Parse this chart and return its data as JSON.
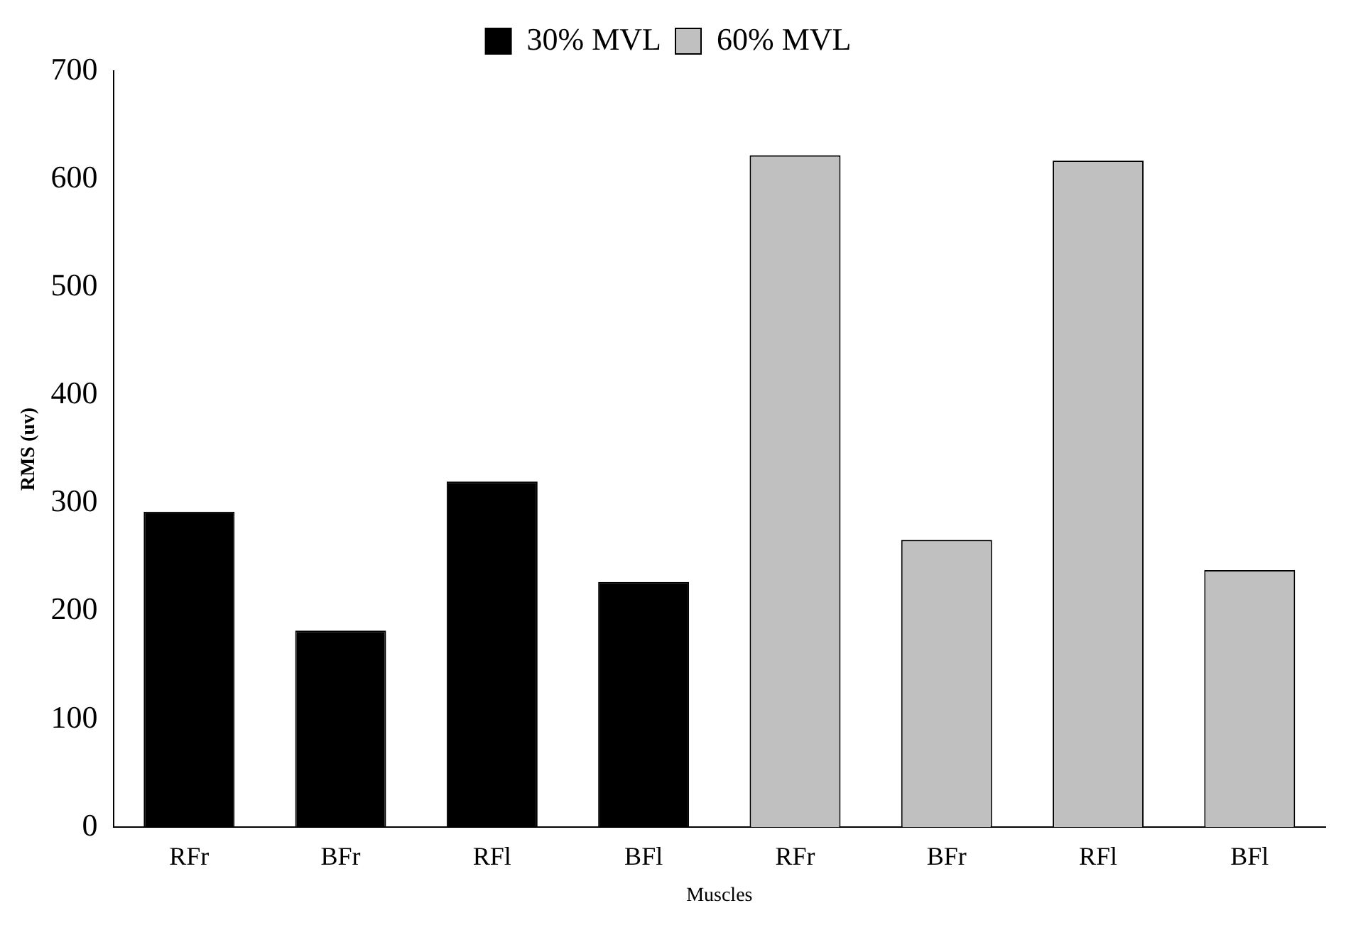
{
  "chart_data": {
    "type": "bar",
    "xlabel": "Muscles",
    "ylabel": "RMS (uv)",
    "categories": [
      "RFr",
      "BFr",
      "RFl",
      "BFl",
      "RFr",
      "BFr",
      "RFl",
      "BFl"
    ],
    "series": [
      {
        "name": "30% MVL",
        "color": "#000000",
        "values": [
          292,
          182,
          320,
          227,
          null,
          null,
          null,
          null
        ]
      },
      {
        "name": "60% MVL",
        "color": "#c0c0c0",
        "values": [
          null,
          null,
          null,
          null,
          622,
          266,
          617,
          238
        ]
      }
    ],
    "ylim": [
      0,
      700
    ],
    "yticks": [
      0,
      100,
      200,
      300,
      400,
      500,
      600,
      700
    ],
    "grid": false,
    "legend": "top"
  }
}
